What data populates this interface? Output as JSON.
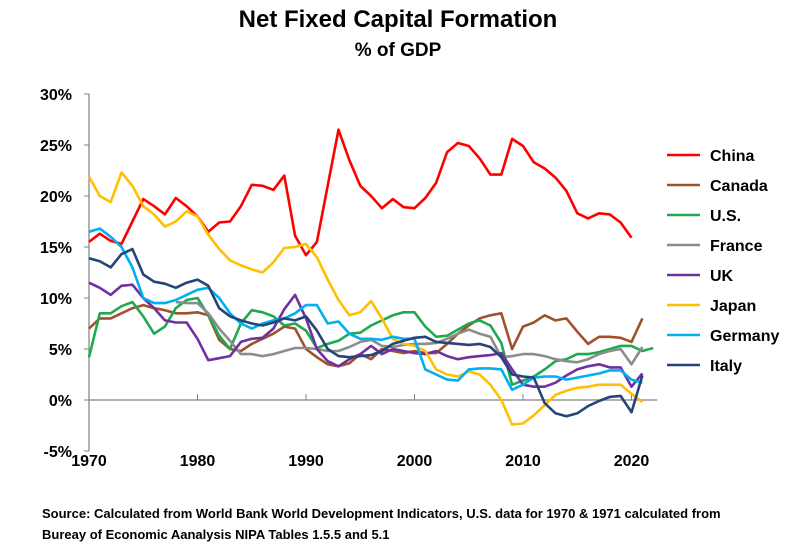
{
  "chart_data": {
    "type": "line",
    "title": "Net Fixed Capital Formation",
    "subtitle": "% of GDP",
    "xlabel": "",
    "ylabel": "",
    "xlim": [
      1970,
      2022
    ],
    "ylim": [
      -5,
      30
    ],
    "x_ticks": [
      1970,
      1980,
      1990,
      2000,
      2010,
      2020
    ],
    "y_ticks": [
      "-5%",
      "0%",
      "5%",
      "10%",
      "15%",
      "20%",
      "25%",
      "30%"
    ],
    "y_tick_values": [
      -5,
      0,
      5,
      10,
      15,
      20,
      25,
      30
    ],
    "grid": false,
    "legend": "right",
    "series": [
      {
        "name": "China",
        "color": "#ff0000",
        "start": 1970,
        "values": [
          15.5,
          16.3,
          15.6,
          15.3,
          17.5,
          19.7,
          19.0,
          18.2,
          19.8,
          19.0,
          18.0,
          16.5,
          17.4,
          17.5,
          19.0,
          21.1,
          21.0,
          20.6,
          22.0,
          16.1,
          14.2,
          15.5,
          21.0,
          26.5,
          23.5,
          21.0,
          20.0,
          18.8,
          19.7,
          18.9,
          18.8,
          19.8,
          21.3,
          24.3,
          25.2,
          24.9,
          23.7,
          22.1,
          22.1,
          25.6,
          24.9,
          23.3,
          22.7,
          21.8,
          20.5,
          18.3,
          17.8,
          18.3,
          18.2,
          17.4,
          15.9
        ]
      },
      {
        "name": "Canada",
        "color": "#a0522d",
        "start": 1970,
        "values": [
          7.0,
          8.0,
          8.0,
          8.5,
          9.0,
          9.3,
          9.0,
          8.8,
          8.5,
          8.5,
          8.6,
          8.3,
          5.9,
          5.0,
          4.8,
          5.5,
          6.0,
          6.5,
          7.2,
          7.0,
          5.0,
          4.2,
          3.5,
          3.3,
          3.6,
          4.5,
          4.0,
          5.0,
          4.8,
          4.6,
          4.8,
          4.6,
          4.6,
          5.5,
          6.5,
          7.3,
          8.0,
          8.3,
          8.5,
          5.0,
          7.2,
          7.6,
          8.3,
          7.8,
          8.0,
          6.7,
          5.5,
          6.2,
          6.2,
          6.1,
          5.7,
          8.0
        ]
      },
      {
        "name": "U.S.",
        "color": "#1faa4f",
        "start": 1970,
        "values": [
          4.2,
          8.5,
          8.5,
          9.2,
          9.6,
          8.2,
          6.5,
          7.2,
          9.0,
          9.8,
          10.0,
          8.3,
          6.3,
          5.0,
          7.5,
          8.8,
          8.6,
          8.2,
          7.3,
          7.5,
          6.8,
          5.1,
          5.5,
          5.8,
          6.5,
          6.6,
          7.3,
          7.8,
          8.3,
          8.6,
          8.6,
          7.2,
          6.2,
          6.3,
          6.9,
          7.5,
          7.8,
          7.3,
          5.6,
          1.5,
          1.9,
          2.3,
          3.0,
          3.8,
          4.0,
          4.5,
          4.5,
          4.7,
          5.0,
          5.3,
          5.3,
          4.8,
          5.1
        ]
      },
      {
        "name": "France",
        "color": "#8c8c8c",
        "start": 1978,
        "values": [
          9.6,
          9.5,
          9.5,
          8.5,
          7.0,
          5.8,
          4.5,
          4.5,
          4.3,
          4.5,
          4.8,
          5.1,
          5.1,
          5.0,
          4.8,
          4.8,
          5.2,
          5.7,
          5.9,
          5.3,
          5.2,
          5.4,
          5.5,
          5.5,
          5.6,
          6.0,
          6.5,
          6.9,
          6.5,
          6.2,
          4.2,
          4.3,
          4.5,
          4.5,
          4.3,
          4.0,
          3.8,
          3.7,
          4.0,
          4.5,
          4.8,
          5.0,
          3.5,
          5.2
        ]
      },
      {
        "name": "UK",
        "color": "#7030a0",
        "start": 1970,
        "values": [
          11.5,
          11.0,
          10.3,
          11.2,
          11.3,
          10.0,
          9.0,
          7.8,
          7.6,
          7.6,
          6.0,
          3.9,
          4.1,
          4.3,
          5.7,
          6.0,
          6.1,
          7.0,
          8.9,
          10.3,
          8.0,
          5.0,
          3.8,
          3.3,
          4.0,
          4.5,
          5.3,
          4.5,
          5.0,
          4.8,
          4.6,
          4.5,
          4.8,
          4.3,
          4.0,
          4.2,
          4.3,
          4.4,
          4.6,
          3.0,
          1.5,
          1.3,
          1.3,
          1.7,
          2.4,
          3.0,
          3.3,
          3.5,
          3.2,
          3.2,
          1.3,
          2.6
        ]
      },
      {
        "name": "Japan",
        "color": "#ffc000",
        "start": 1970,
        "values": [
          21.9,
          20.0,
          19.4,
          22.3,
          21.0,
          19.0,
          18.2,
          17.0,
          17.5,
          18.5,
          18.0,
          16.2,
          14.8,
          13.7,
          13.2,
          12.8,
          12.5,
          13.5,
          14.9,
          15.0,
          15.3,
          14.0,
          11.8,
          9.8,
          8.3,
          8.6,
          9.7,
          8.0,
          6.0,
          5.5,
          5.3,
          4.8,
          3.0,
          2.5,
          2.3,
          2.8,
          2.5,
          1.5,
          0.0,
          -2.4,
          -2.3,
          -1.5,
          -0.5,
          0.5,
          0.9,
          1.2,
          1.3,
          1.5,
          1.5,
          1.5,
          0.6,
          -0.2
        ]
      },
      {
        "name": "Germany",
        "color": "#00b0f0",
        "start": 1970,
        "values": [
          16.5,
          16.8,
          16.0,
          15.0,
          13.0,
          10.0,
          9.5,
          9.5,
          9.8,
          10.3,
          10.8,
          11.0,
          10.0,
          8.5,
          7.5,
          7.0,
          7.5,
          7.8,
          8.0,
          8.5,
          9.3,
          9.3,
          7.5,
          7.7,
          6.5,
          6.0,
          6.0,
          5.9,
          6.2,
          6.0,
          6.0,
          3.0,
          2.5,
          2.0,
          1.9,
          3.0,
          3.1,
          3.1,
          3.0,
          1.0,
          1.5,
          2.2,
          2.3,
          2.3,
          2.0,
          2.2,
          2.4,
          2.6,
          2.9,
          2.9,
          2.0,
          1.7
        ]
      },
      {
        "name": "Italy",
        "color": "#264478",
        "start": 1970,
        "values": [
          13.9,
          13.6,
          13.0,
          14.3,
          14.8,
          12.3,
          11.6,
          11.4,
          11.0,
          11.5,
          11.8,
          11.2,
          9.0,
          8.2,
          7.8,
          7.5,
          7.3,
          7.6,
          8.0,
          7.8,
          8.2,
          6.8,
          5.0,
          4.3,
          4.2,
          4.3,
          4.4,
          4.8,
          5.5,
          5.8,
          6.1,
          6.2,
          5.7,
          5.6,
          5.5,
          5.4,
          5.5,
          5.2,
          4.2,
          2.5,
          2.3,
          2.2,
          -0.3,
          -1.3,
          -1.6,
          -1.3,
          -0.6,
          -0.1,
          0.3,
          0.4,
          -1.2,
          2.4
        ]
      }
    ]
  },
  "source": {
    "line1": "Source:  Calculated from World Bank World Development Indicators, U.S. data for 1970 & 1971 calculated from",
    "line2": "Bureay of Economic Aanalysis NIPA Tables 1.5.5 and 5.1"
  }
}
